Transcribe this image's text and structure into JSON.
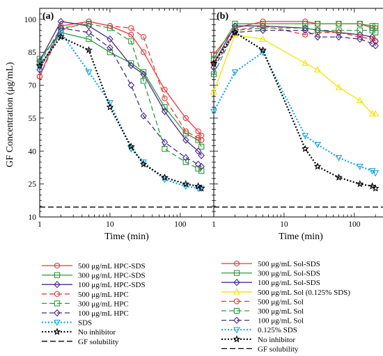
{
  "figure": {
    "ylabel": "GF Concentration (μg/mL)",
    "colors": {
      "red": "#e8383b",
      "green": "#2e9a3c",
      "purple": "#4a2a8c",
      "cyan": "#1aa3e0",
      "black": "#000000",
      "yellow": "#f2e600"
    }
  },
  "chart_data": [
    {
      "type": "line",
      "panel_label": "(a)",
      "xlabel": "Time (min)",
      "ylabel": "GF Concentration (μg/mL)",
      "xscale": "log",
      "xlim": [
        1,
        300
      ],
      "ylim": [
        10,
        105
      ],
      "xticks": [
        1,
        10,
        100
      ],
      "yticks": [
        10,
        25,
        40,
        55,
        70,
        85,
        100
      ],
      "x": [
        1,
        2,
        5,
        10,
        20,
        30,
        60,
        120,
        180,
        200
      ],
      "series": [
        {
          "name": "500 μg/mL HPC-SDS",
          "color": "#e8383b",
          "dash": "solid",
          "marker": "circle",
          "values": [
            74,
            97,
            99,
            97,
            93,
            85,
            68,
            55,
            49,
            47
          ]
        },
        {
          "name": "300 μg/mL HPC-SDS",
          "color": "#2e9a3c",
          "dash": "solid",
          "marker": "square",
          "values": [
            82,
            94,
            91,
            85,
            80,
            76,
            60,
            48,
            45,
            42
          ]
        },
        {
          "name": "100 μg/mL HPC-SDS",
          "color": "#4a2a8c",
          "dash": "solid",
          "marker": "diamond",
          "values": [
            81,
            99,
            97,
            91,
            79,
            75,
            58,
            45,
            40,
            38
          ]
        },
        {
          "name": "500 μg/mL HPC",
          "color": "#e8383b",
          "dash": "dashed",
          "marker": "circle",
          "values": [
            74,
            95,
            99,
            97,
            96,
            92,
            64,
            49,
            46,
            45
          ]
        },
        {
          "name": "300 μg/mL HPC",
          "color": "#2e9a3c",
          "dash": "dashed",
          "marker": "square",
          "values": [
            80,
            96,
            98,
            96,
            90,
            72,
            41,
            35,
            32,
            31
          ]
        },
        {
          "name": "100 μg/mL HPC",
          "color": "#4a2a8c",
          "dash": "dashed",
          "marker": "diamond",
          "values": [
            77,
            96,
            94,
            87,
            70,
            56,
            44,
            37,
            34,
            33
          ]
        },
        {
          "name": "SDS",
          "color": "#1aa3e0",
          "dash": "dotted",
          "marker": "triangle-down",
          "values": [
            78,
            94,
            76,
            62,
            41,
            35,
            27,
            24,
            23,
            23
          ]
        },
        {
          "name": "No inhibitor",
          "color": "#000000",
          "dash": "dotted",
          "marker": "star",
          "values": [
            79,
            92,
            86,
            60,
            42,
            34,
            28,
            25,
            24,
            23
          ]
        }
      ],
      "hlines": [
        {
          "name": "GF solubility",
          "y": 14.5,
          "dash": "dashed",
          "color": "#000000"
        }
      ],
      "legend": "below"
    },
    {
      "type": "line",
      "panel_label": "(b)",
      "xlabel": "Time (min)",
      "xscale": "log",
      "xlim": [
        1,
        300
      ],
      "ylim": [
        10,
        105
      ],
      "xticks": [
        1,
        10,
        100
      ],
      "yticks": [
        10,
        25,
        40,
        55,
        70,
        85,
        100
      ],
      "x": [
        1,
        2,
        5,
        20,
        30,
        60,
        120,
        180,
        200
      ],
      "series": [
        {
          "name": "500 μg/mL Sol-SDS",
          "color": "#e8383b",
          "dash": "solid",
          "marker": "circle",
          "values": [
            84,
            96,
            99,
            99,
            98,
            98,
            98,
            96,
            96
          ]
        },
        {
          "name": "300 μg/mL Sol-SDS",
          "color": "#2e9a3c",
          "dash": "solid",
          "marker": "square",
          "values": [
            82,
            98,
            98,
            98,
            98,
            98,
            98,
            97,
            97
          ]
        },
        {
          "name": "100 μg/mL Sol-SDS",
          "color": "#4a2a8c",
          "dash": "solid",
          "marker": "diamond",
          "values": [
            80,
            97,
            97,
            96,
            95,
            94,
            93,
            92,
            90
          ]
        },
        {
          "name": "500 μg/mL Sol (0.125% SDS)",
          "color": "#f2e600",
          "dash": "solid",
          "marker": "triangle",
          "values": [
            67,
            93,
            91,
            80,
            77,
            69,
            63,
            57,
            57
          ]
        },
        {
          "name": "500 μg/mL Sol",
          "color": "#e8383b",
          "dash": "dashed",
          "marker": "circle",
          "values": [
            80,
            95,
            97,
            93,
            94,
            94,
            92,
            91,
            90
          ]
        },
        {
          "name": "300 μg/mL Sol",
          "color": "#2e9a3c",
          "dash": "dashed",
          "marker": "square",
          "values": [
            75,
            95,
            96,
            96,
            95,
            95,
            95,
            95,
            94
          ]
        },
        {
          "name": "100 μg/mL Sol",
          "color": "#4a2a8c",
          "dash": "dashed",
          "marker": "diamond",
          "values": [
            78,
            94,
            95,
            95,
            92,
            92,
            91,
            89,
            88
          ]
        },
        {
          "name": "0.125% SDS",
          "color": "#1aa3e0",
          "dash": "dotted",
          "marker": "triangle-down",
          "values": [
            58,
            76,
            85,
            47,
            43,
            37,
            33,
            31,
            30
          ]
        },
        {
          "name": "No inhibitor",
          "color": "#000000",
          "dash": "dotted",
          "marker": "star",
          "values": [
            80,
            94,
            86,
            41,
            33,
            28,
            25,
            24,
            23
          ]
        }
      ],
      "hlines": [
        {
          "name": "GF solubility",
          "y": 14.5,
          "dash": "dashed",
          "color": "#000000"
        }
      ],
      "legend": "below"
    }
  ]
}
